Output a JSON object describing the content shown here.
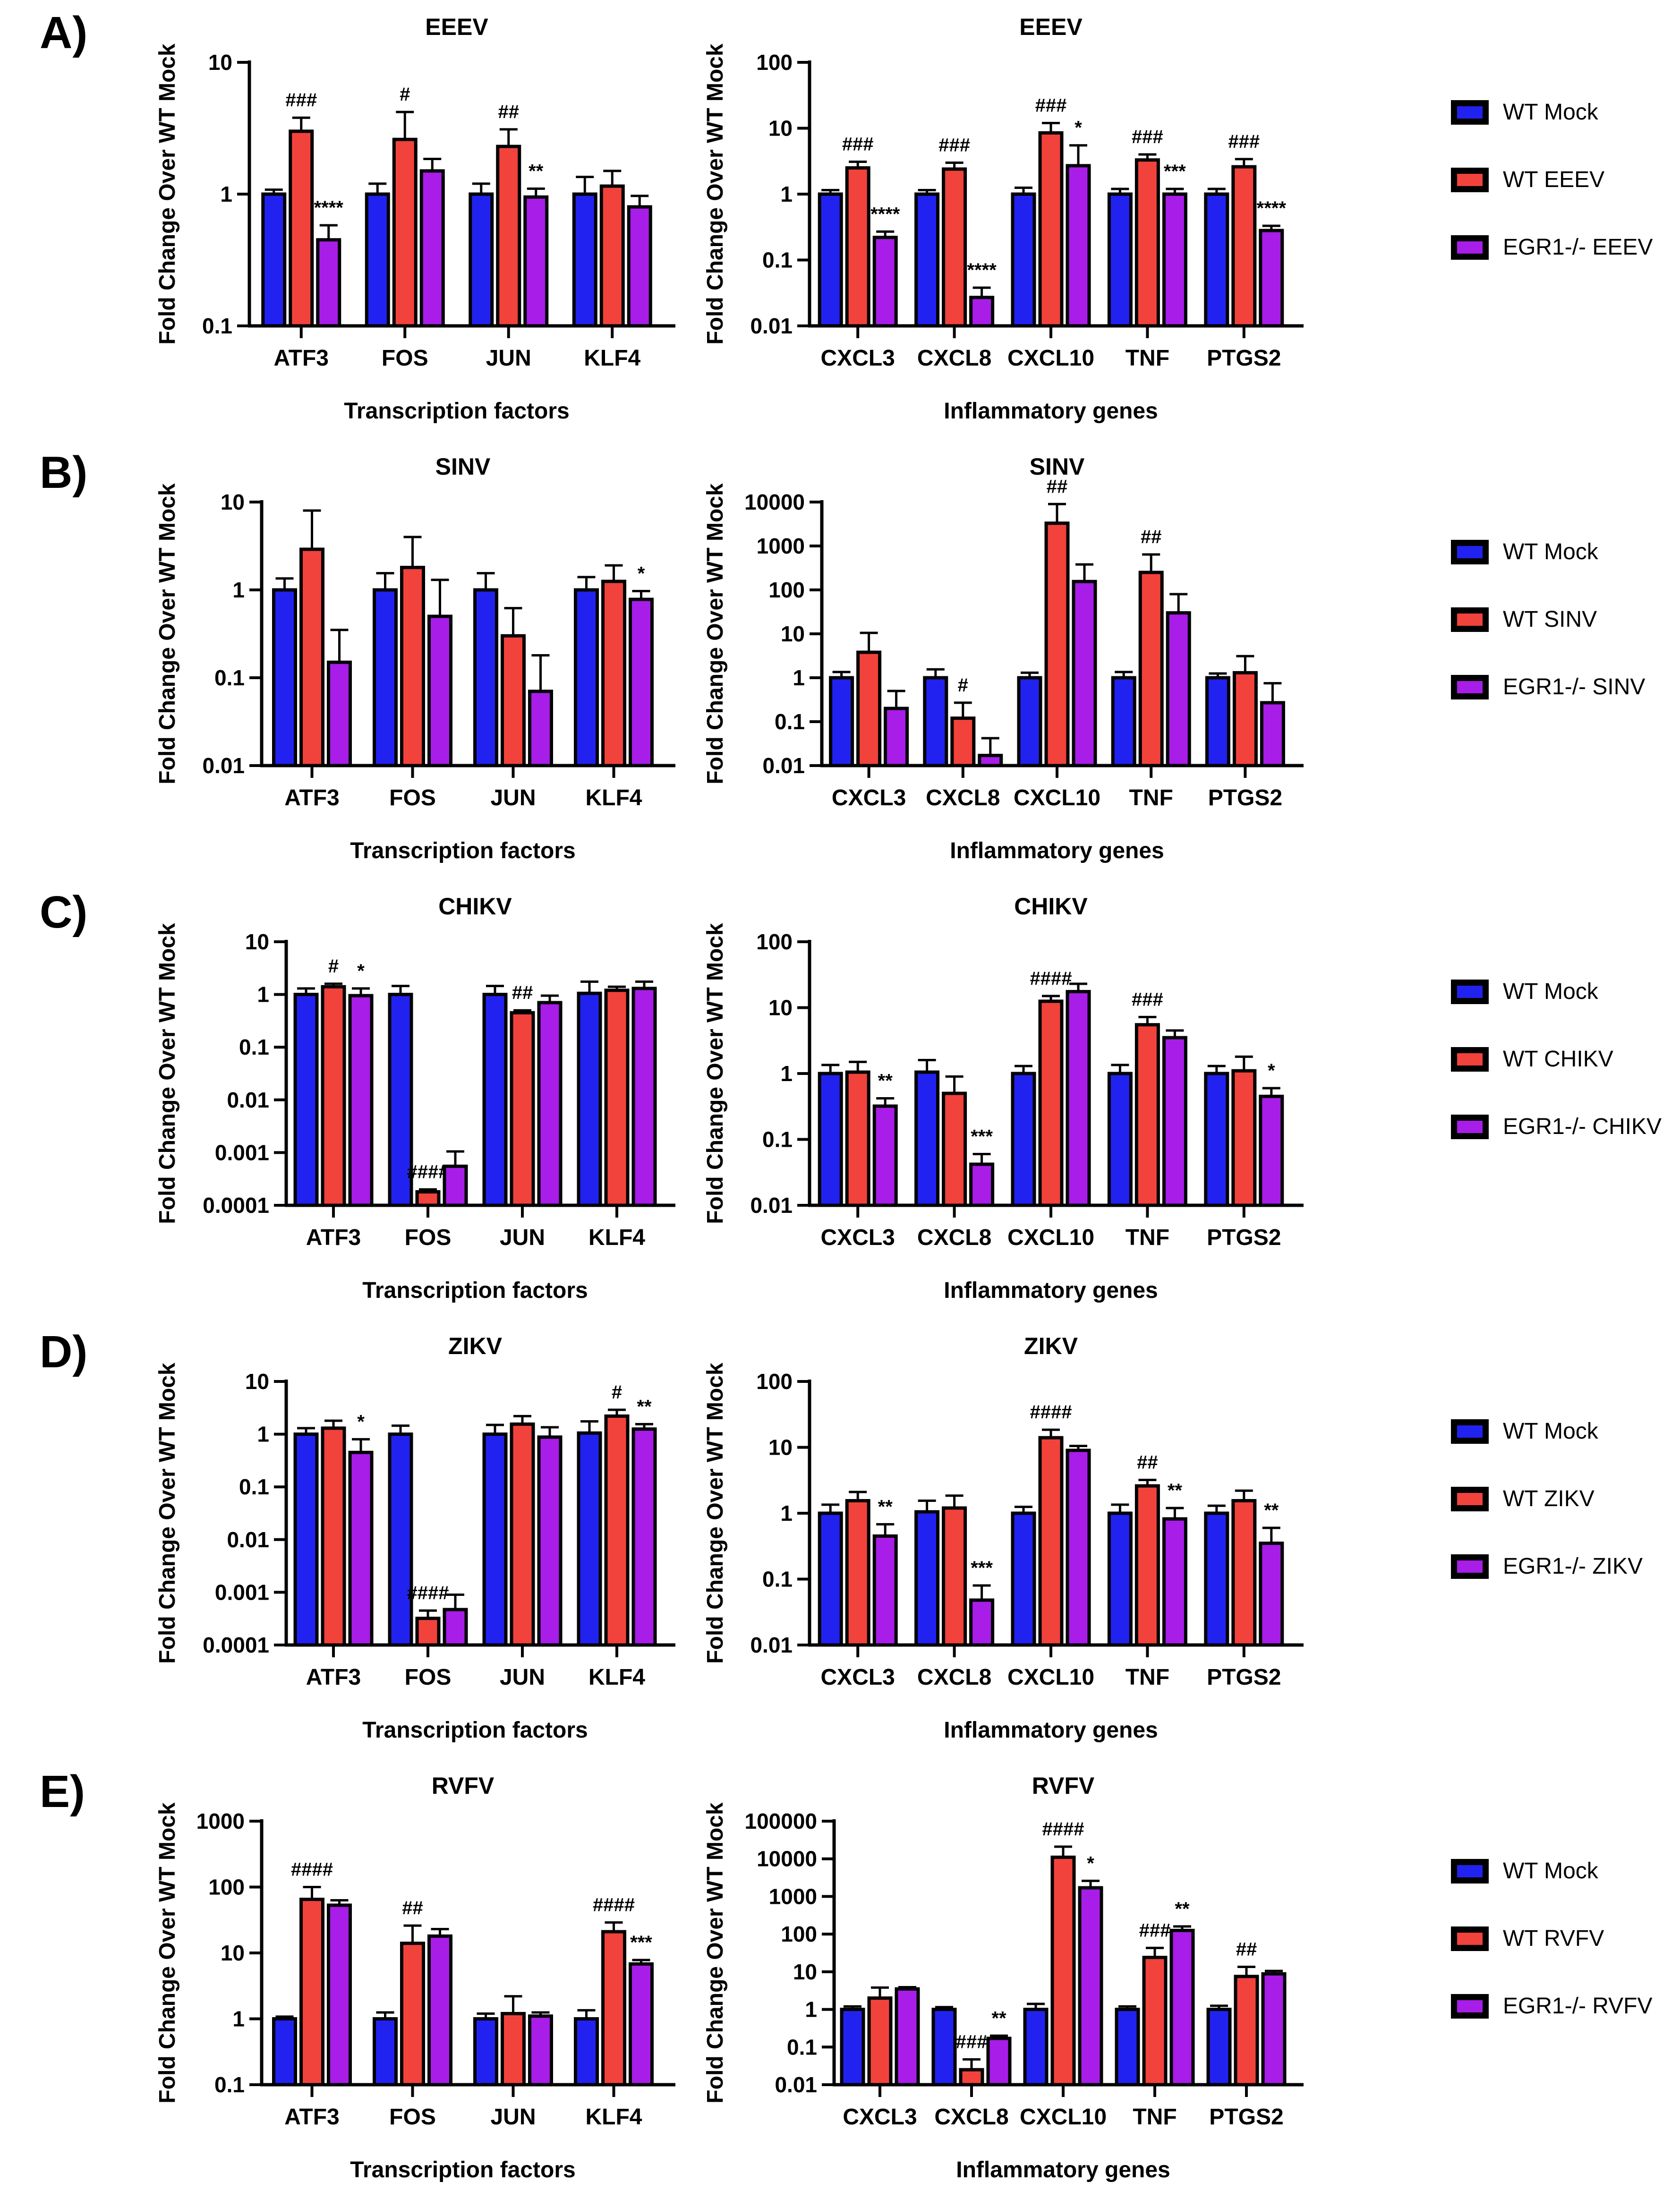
{
  "figure": {
    "panels": [
      "A)",
      "B)",
      "C)",
      "D)",
      "E)"
    ]
  },
  "colors": {
    "mock": "#2222f0",
    "wt": "#f2423c",
    "ko": "#a81de8"
  },
  "legends": [
    [
      "WT Mock",
      "WT EEEV",
      "EGR1-/- EEEV"
    ],
    [
      "WT Mock",
      "WT SINV",
      "EGR1-/- SINV"
    ],
    [
      "WT Mock",
      "WT CHIKV",
      "EGR1-/- CHIKV"
    ],
    [
      "WT Mock",
      "WT ZIKV",
      "EGR1-/- ZIKV"
    ],
    [
      "WT Mock",
      "WT RVFV",
      "EGR1-/- RVFV"
    ]
  ],
  "chart_data": [
    {
      "type": "bar",
      "title": "EEEV",
      "xlabel": "Transcription factors",
      "ylabel": "Fold Change Over WT Mock",
      "yscale": "log",
      "ylim": [
        0.1,
        10
      ],
      "yticks": [
        "10",
        "1",
        "0.1"
      ],
      "categories": [
        "ATF3",
        "FOS",
        "JUN",
        "KLF4"
      ],
      "series": [
        {
          "name": "WT Mock",
          "color": "mock",
          "values": [
            1,
            1,
            1,
            1
          ],
          "err_top": [
            1.08,
            1.2,
            1.2,
            1.35
          ],
          "marks": [
            "",
            "",
            "",
            ""
          ]
        },
        {
          "name": "WT EEEV",
          "color": "wt",
          "values": [
            3.0,
            2.6,
            2.3,
            1.15
          ],
          "err_top": [
            3.8,
            4.2,
            3.1,
            1.5
          ],
          "marks": [
            "###",
            "#",
            "##",
            ""
          ]
        },
        {
          "name": "EGR1-/- EEEV",
          "color": "ko",
          "values": [
            0.45,
            1.5,
            0.95,
            0.8
          ],
          "err_top": [
            0.58,
            1.85,
            1.1,
            0.97
          ],
          "marks": [
            "****",
            "",
            "**",
            ""
          ]
        }
      ]
    },
    {
      "type": "bar",
      "title": "EEEV",
      "xlabel": "Inflammatory genes",
      "ylabel": "Fold Change Over WT Mock",
      "yscale": "log",
      "ylim": [
        0.01,
        100
      ],
      "yticks": [
        "100",
        "10",
        "1",
        "0.1",
        "0.01"
      ],
      "categories": [
        "CXCL3",
        "CXCL8",
        "CXCL10",
        "TNF",
        "PTGS2"
      ],
      "series": [
        {
          "name": "WT Mock",
          "color": "mock",
          "values": [
            1,
            1,
            1,
            1,
            1
          ],
          "err_top": [
            1.15,
            1.15,
            1.25,
            1.2,
            1.2
          ],
          "marks": [
            "",
            "",
            "",
            "",
            ""
          ]
        },
        {
          "name": "WT EEEV",
          "color": "wt",
          "values": [
            2.5,
            2.4,
            8.5,
            3.3,
            2.6
          ],
          "err_top": [
            3.1,
            3.0,
            12,
            4.0,
            3.4
          ],
          "marks": [
            "###",
            "###",
            "###",
            "###",
            "###"
          ]
        },
        {
          "name": "EGR1-/- EEEV",
          "color": "ko",
          "values": [
            0.22,
            0.027,
            2.7,
            1.0,
            0.28
          ],
          "err_top": [
            0.27,
            0.038,
            5.5,
            1.2,
            0.33
          ],
          "marks": [
            "****",
            "****",
            "*",
            "***",
            "****"
          ]
        }
      ]
    },
    {
      "type": "bar",
      "title": "SINV",
      "xlabel": "Transcription factors",
      "ylabel": "Fold Change Over WT Mock",
      "yscale": "log",
      "ylim": [
        0.01,
        10
      ],
      "yticks": [
        "10",
        "1",
        "0.1",
        "0.01"
      ],
      "categories": [
        "ATF3",
        "FOS",
        "JUN",
        "KLF4"
      ],
      "series": [
        {
          "name": "WT Mock",
          "color": "mock",
          "values": [
            1,
            1,
            1,
            1
          ],
          "err_top": [
            1.35,
            1.55,
            1.55,
            1.4
          ],
          "marks": [
            "",
            "",
            "",
            ""
          ]
        },
        {
          "name": "WT SINV",
          "color": "wt",
          "values": [
            2.9,
            1.8,
            0.3,
            1.25
          ],
          "err_top": [
            8.0,
            4.0,
            0.62,
            1.9
          ],
          "marks": [
            "",
            "",
            "",
            ""
          ]
        },
        {
          "name": "EGR1-/- SINV",
          "color": "ko",
          "values": [
            0.15,
            0.5,
            0.07,
            0.78
          ],
          "err_top": [
            0.35,
            1.3,
            0.18,
            0.97
          ],
          "marks": [
            "",
            "",
            "",
            "*"
          ]
        }
      ]
    },
    {
      "type": "bar",
      "title": "SINV",
      "xlabel": "Inflammatory genes",
      "ylabel": "Fold Change Over WT Mock",
      "yscale": "log",
      "ylim": [
        0.01,
        10000
      ],
      "yticks": [
        "10000",
        "1000",
        "100",
        "10",
        "1",
        "0.1",
        "0.01"
      ],
      "categories": [
        "CXCL3",
        "CXCL8",
        "CXCL10",
        "TNF",
        "PTGS2"
      ],
      "series": [
        {
          "name": "WT Mock",
          "color": "mock",
          "values": [
            1,
            1,
            1,
            1,
            1
          ],
          "err_top": [
            1.35,
            1.55,
            1.3,
            1.35,
            1.25
          ],
          "marks": [
            "",
            "",
            "",
            "",
            ""
          ]
        },
        {
          "name": "WT SINV",
          "color": "wt",
          "values": [
            3.8,
            0.12,
            3300,
            250,
            1.3
          ],
          "err_top": [
            10.5,
            0.27,
            9000,
            640,
            3.1
          ],
          "marks": [
            "",
            "#",
            "##",
            "##",
            ""
          ]
        },
        {
          "name": "EGR1-/- SINV",
          "color": "ko",
          "values": [
            0.2,
            0.017,
            155,
            30,
            0.27
          ],
          "err_top": [
            0.5,
            0.042,
            380,
            80,
            0.75
          ],
          "marks": [
            "",
            "",
            "",
            "",
            ""
          ]
        }
      ]
    },
    {
      "type": "bar",
      "title": "CHIKV",
      "xlabel": "Transcription factors",
      "ylabel": "Fold Change Over WT Mock",
      "yscale": "log",
      "ylim": [
        0.0001,
        10
      ],
      "yticks": [
        "10",
        "1",
        "0.1",
        "0.01",
        "0.001",
        "0.0001"
      ],
      "categories": [
        "ATF3",
        "FOS",
        "JUN",
        "KLF4"
      ],
      "series": [
        {
          "name": "WT Mock",
          "color": "mock",
          "values": [
            1,
            1,
            1,
            1.05
          ],
          "err_top": [
            1.3,
            1.45,
            1.45,
            1.75
          ],
          "marks": [
            "",
            "",
            "",
            ""
          ]
        },
        {
          "name": "WT CHIKV",
          "color": "wt",
          "values": [
            1.4,
            0.00018,
            0.45,
            1.2
          ],
          "err_top": [
            1.6,
            0.0002,
            0.5,
            1.4
          ],
          "marks": [
            "#",
            "####",
            "##",
            ""
          ]
        },
        {
          "name": "EGR1-/- CHIKV",
          "color": "ko",
          "values": [
            0.95,
            0.00055,
            0.7,
            1.3
          ],
          "err_top": [
            1.3,
            0.00105,
            0.95,
            1.75
          ],
          "marks": [
            "*",
            "",
            "",
            ""
          ]
        }
      ]
    },
    {
      "type": "bar",
      "title": "CHIKV",
      "xlabel": "Inflammatory genes",
      "ylabel": "Fold Change Over WT Mock",
      "yscale": "log",
      "ylim": [
        0.01,
        100
      ],
      "yticks": [
        "100",
        "10",
        "1",
        "0.1",
        "0.01"
      ],
      "categories": [
        "CXCL3",
        "CXCL8",
        "CXCL10",
        "TNF",
        "PTGS2"
      ],
      "series": [
        {
          "name": "WT Mock",
          "color": "mock",
          "values": [
            1,
            1.05,
            1,
            1,
            1
          ],
          "err_top": [
            1.35,
            1.6,
            1.3,
            1.35,
            1.3
          ],
          "marks": [
            "",
            "",
            "",
            "",
            ""
          ]
        },
        {
          "name": "WT CHIKV",
          "color": "wt",
          "values": [
            1.05,
            0.5,
            12.5,
            5.5,
            1.1
          ],
          "err_top": [
            1.5,
            0.9,
            15,
            7.2,
            1.8
          ],
          "marks": [
            "",
            "",
            "####",
            "###",
            ""
          ]
        },
        {
          "name": "EGR1-/- CHIKV",
          "color": "ko",
          "values": [
            0.32,
            0.042,
            17.5,
            3.5,
            0.45
          ],
          "err_top": [
            0.42,
            0.06,
            23,
            4.5,
            0.6
          ],
          "marks": [
            "**",
            "***",
            "",
            "",
            "*"
          ]
        }
      ]
    },
    {
      "type": "bar",
      "title": "ZIKV",
      "xlabel": "Transcription factors",
      "ylabel": "Fold Change Over WT Mock",
      "yscale": "log",
      "ylim": [
        0.0001,
        10
      ],
      "yticks": [
        "10",
        "1",
        "0.1",
        "0.01",
        "0.001",
        "0.0001"
      ],
      "categories": [
        "ATF3",
        "FOS",
        "JUN",
        "KLF4"
      ],
      "series": [
        {
          "name": "WT Mock",
          "color": "mock",
          "values": [
            1,
            1,
            1,
            1.05
          ],
          "err_top": [
            1.3,
            1.45,
            1.5,
            1.75
          ],
          "marks": [
            "",
            "",
            "",
            ""
          ]
        },
        {
          "name": "WT ZIKV",
          "color": "wt",
          "values": [
            1.3,
            0.00032,
            1.55,
            2.2
          ],
          "err_top": [
            1.8,
            0.00045,
            2.2,
            2.9
          ],
          "marks": [
            "",
            "####",
            "",
            "#"
          ]
        },
        {
          "name": "EGR1-/- ZIKV",
          "color": "ko",
          "values": [
            0.45,
            0.00047,
            0.88,
            1.25
          ],
          "err_top": [
            0.8,
            0.0009,
            1.35,
            1.55
          ],
          "marks": [
            "*",
            "",
            "",
            "**"
          ]
        }
      ]
    },
    {
      "type": "bar",
      "title": "ZIKV",
      "xlabel": "Inflammatory genes",
      "ylabel": "Fold Change Over WT Mock",
      "yscale": "log",
      "ylim": [
        0.01,
        100
      ],
      "yticks": [
        "100",
        "10",
        "1",
        "0.1",
        "0.01"
      ],
      "categories": [
        "CXCL3",
        "CXCL8",
        "CXCL10",
        "TNF",
        "PTGS2"
      ],
      "series": [
        {
          "name": "WT Mock",
          "color": "mock",
          "values": [
            1,
            1.05,
            1,
            1,
            1
          ],
          "err_top": [
            1.35,
            1.55,
            1.25,
            1.35,
            1.3
          ],
          "marks": [
            "",
            "",
            "",
            "",
            ""
          ]
        },
        {
          "name": "WT ZIKV",
          "color": "wt",
          "values": [
            1.55,
            1.2,
            14,
            2.6,
            1.55
          ],
          "err_top": [
            2.1,
            1.85,
            18.5,
            3.2,
            2.2
          ],
          "marks": [
            "",
            "",
            "####",
            "##",
            ""
          ]
        },
        {
          "name": "EGR1-/- ZIKV",
          "color": "ko",
          "values": [
            0.45,
            0.048,
            9,
            0.82,
            0.35
          ],
          "err_top": [
            0.68,
            0.08,
            10.5,
            1.2,
            0.6
          ],
          "marks": [
            "**",
            "***",
            "",
            "**",
            "**"
          ]
        }
      ]
    },
    {
      "type": "bar",
      "title": "RVFV",
      "xlabel": "Transcription factors",
      "ylabel": "Fold Change Over WT Mock",
      "yscale": "log",
      "ylim": [
        0.1,
        1000
      ],
      "yticks": [
        "1000",
        "100",
        "10",
        "1",
        "0.1"
      ],
      "categories": [
        "ATF3",
        "FOS",
        "JUN",
        "KLF4"
      ],
      "series": [
        {
          "name": "WT Mock",
          "color": "mock",
          "values": [
            1,
            1,
            1,
            1
          ],
          "err_top": [
            1.08,
            1.25,
            1.2,
            1.35
          ],
          "marks": [
            "",
            "",
            "",
            ""
          ]
        },
        {
          "name": "WT RVFV",
          "color": "wt",
          "values": [
            65,
            14,
            1.2,
            21
          ],
          "err_top": [
            100,
            26,
            2.2,
            29
          ],
          "marks": [
            "####",
            "##",
            "",
            "####"
          ]
        },
        {
          "name": "EGR1-/- RVFV",
          "color": "ko",
          "values": [
            53,
            18,
            1.1,
            6.8
          ],
          "err_top": [
            63,
            23,
            1.25,
            7.8
          ],
          "marks": [
            "",
            "",
            "",
            "***"
          ]
        }
      ]
    },
    {
      "type": "bar",
      "title": "RVFV",
      "xlabel": "Inflammatory genes",
      "ylabel": "Fold Change Over WT Mock",
      "yscale": "log",
      "ylim": [
        0.01,
        100000
      ],
      "yticks": [
        "100000",
        "10000",
        "1000",
        "100",
        "10",
        "1",
        "0.1",
        "0.01"
      ],
      "categories": [
        "CXCL3",
        "CXCL8",
        "CXCL10",
        "TNF",
        "PTGS2"
      ],
      "series": [
        {
          "name": "WT Mock",
          "color": "mock",
          "values": [
            1,
            1,
            1,
            1,
            1
          ],
          "err_top": [
            1.2,
            1.15,
            1.4,
            1.2,
            1.25
          ],
          "marks": [
            "",
            "",
            "",
            "",
            ""
          ]
        },
        {
          "name": "WT RVFV",
          "color": "wt",
          "values": [
            2,
            0.025,
            11000,
            24,
            7.5
          ],
          "err_top": [
            3.8,
            0.047,
            21000,
            43,
            13.5
          ],
          "marks": [
            "",
            "###",
            "####",
            "###",
            "##"
          ]
        },
        {
          "name": "EGR1-/- RVFV",
          "color": "ko",
          "values": [
            3.5,
            0.17,
            1700,
            125,
            8.8
          ],
          "err_top": [
            3.9,
            0.2,
            2600,
            160,
            10.5
          ],
          "marks": [
            "",
            "**",
            "*",
            "**",
            ""
          ]
        }
      ]
    }
  ]
}
